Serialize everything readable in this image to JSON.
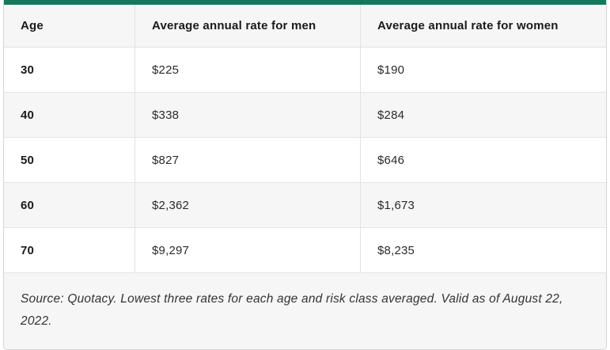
{
  "table": {
    "columns": {
      "age": "Age",
      "men": "Average annual rate for men",
      "women": "Average annual rate for women"
    },
    "rows": [
      {
        "age": "30",
        "men": "$225",
        "women": "$190"
      },
      {
        "age": "40",
        "men": "$338",
        "women": "$284"
      },
      {
        "age": "50",
        "men": "$827",
        "women": "$646"
      },
      {
        "age": "60",
        "men": "$2,362",
        "women": "$1,673"
      },
      {
        "age": "70",
        "men": "$9,297",
        "women": "$8,235"
      }
    ],
    "source_note": "Source: Quotacy. Lowest three rates for each age and risk class averaged. Valid as of August 22, 2022."
  },
  "colors": {
    "accent_green": "#0f7a5c",
    "stripe_gray": "#f6f6f6",
    "border_gray": "#d6d6d6"
  },
  "chart_data": {
    "type": "table",
    "title": "",
    "categories": [
      "30",
      "40",
      "50",
      "60",
      "70"
    ],
    "xlabel": "Age",
    "series": [
      {
        "name": "Average annual rate for men",
        "values": [
          225,
          338,
          827,
          2362,
          9297
        ]
      },
      {
        "name": "Average annual rate for women",
        "values": [
          190,
          284,
          646,
          1673,
          8235
        ]
      }
    ],
    "annotations": [
      "Source: Quotacy. Lowest three rates for each age and risk class averaged. Valid as of August 22, 2022."
    ]
  }
}
